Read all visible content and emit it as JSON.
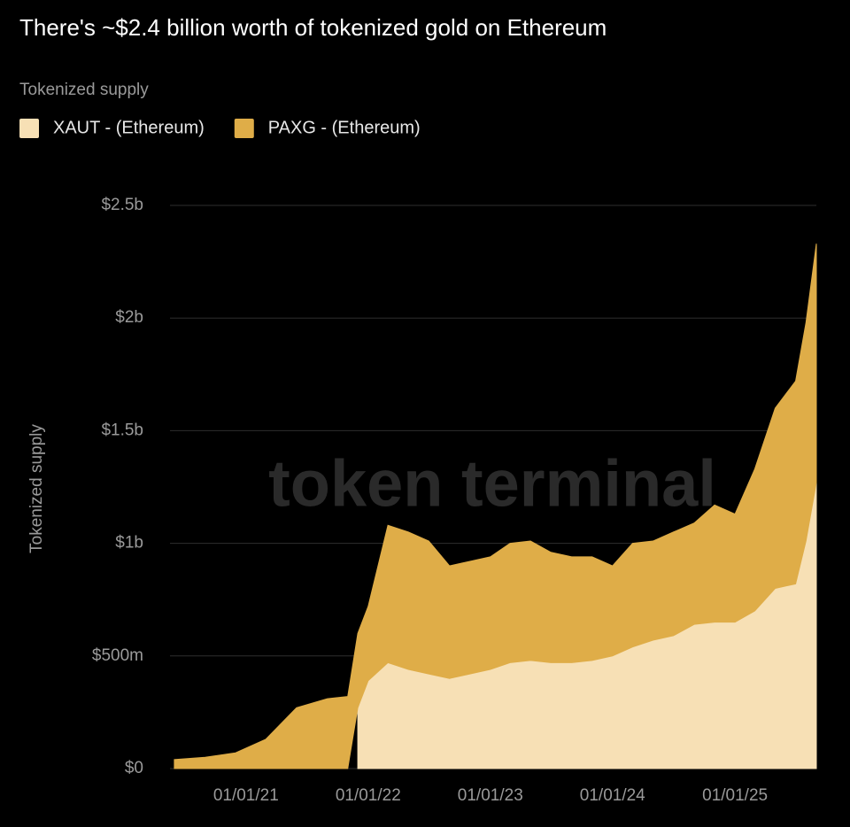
{
  "chart_data": {
    "type": "stacked_area",
    "title": "There's ~$2.4 billion worth of tokenized gold on Ethereum",
    "legend_title": "Tokenized supply",
    "y_label": "Tokenized supply",
    "watermark": "token terminal",
    "x": [
      "2020-06-01",
      "2020-09-01",
      "2020-12-01",
      "2021-03-01",
      "2021-06-01",
      "2021-09-01",
      "2021-11-01",
      "2021-12-01",
      "2022-01-01",
      "2022-03-01",
      "2022-05-01",
      "2022-07-01",
      "2022-09-01",
      "2022-11-01",
      "2023-01-01",
      "2023-03-01",
      "2023-05-01",
      "2023-07-01",
      "2023-09-01",
      "2023-11-01",
      "2024-01-01",
      "2024-03-01",
      "2024-05-01",
      "2024-07-01",
      "2024-09-01",
      "2024-11-01",
      "2025-01-01",
      "2025-03-01",
      "2025-05-01",
      "2025-07-01",
      "2025-08-01",
      "2025-09-01"
    ],
    "series": [
      {
        "name": "XAUT - (Ethereum)",
        "color": "#f7e0b5",
        "values": [
          null,
          null,
          null,
          null,
          null,
          null,
          null,
          270000000,
          390000000,
          470000000,
          440000000,
          420000000,
          400000000,
          420000000,
          440000000,
          470000000,
          480000000,
          470000000,
          470000000,
          480000000,
          500000000,
          540000000,
          570000000,
          590000000,
          640000000,
          650000000,
          650000000,
          700000000,
          800000000,
          820000000,
          1010000000,
          1270000000
        ]
      },
      {
        "name": "PAXG - (Ethereum)",
        "color": "#dfad48",
        "values": [
          40000000,
          50000000,
          70000000,
          130000000,
          270000000,
          310000000,
          320000000,
          330000000,
          330000000,
          610000000,
          610000000,
          590000000,
          500000000,
          500000000,
          500000000,
          530000000,
          530000000,
          490000000,
          470000000,
          460000000,
          400000000,
          460000000,
          440000000,
          460000000,
          450000000,
          520000000,
          480000000,
          630000000,
          800000000,
          900000000,
          970000000,
          1060000000
        ]
      }
    ],
    "xlim": [
      "2020-05-19",
      "2025-09-01"
    ],
    "xticks": [
      {
        "value": "2021-01-01",
        "label": "01/01/21"
      },
      {
        "value": "2022-01-01",
        "label": "01/01/22"
      },
      {
        "value": "2023-01-01",
        "label": "01/01/23"
      },
      {
        "value": "2024-01-01",
        "label": "01/01/24"
      },
      {
        "value": "2025-01-01",
        "label": "01/01/25"
      }
    ],
    "ylim": [
      0,
      2500000000
    ],
    "yticks": [
      {
        "value": 0,
        "label": "$0"
      },
      {
        "value": 500000000,
        "label": "$500m"
      },
      {
        "value": 1000000000,
        "label": "$1b"
      },
      {
        "value": 1500000000,
        "label": "$1.5b"
      },
      {
        "value": 2000000000,
        "label": "$2b"
      },
      {
        "value": 2500000000,
        "label": "$2.5b"
      }
    ],
    "grid": true
  }
}
